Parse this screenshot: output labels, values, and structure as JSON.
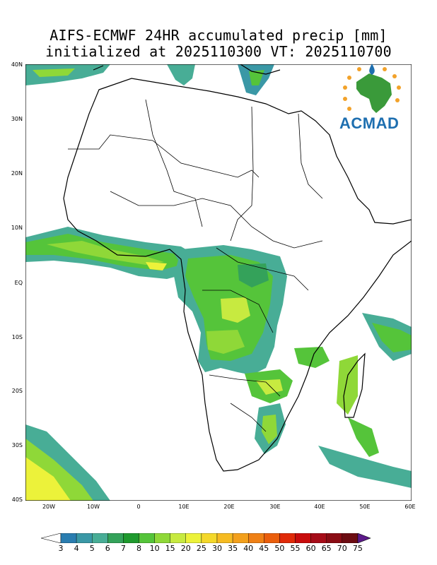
{
  "header": {
    "title_line1": "AIFS-ECMWF 24HR accumulated precip [mm]",
    "title_line2": "initialized at 2025110300 VT: 2025110700"
  },
  "axes": {
    "lat_labels": [
      "40N",
      "30N",
      "20N",
      "10N",
      "EQ",
      "10S",
      "20S",
      "30S",
      "40S"
    ],
    "lon_labels": [
      "20W",
      "10W",
      "0",
      "10E",
      "20E",
      "30E",
      "40E",
      "50E",
      "60E"
    ],
    "lon_range": [
      -25,
      60
    ],
    "lat_range": [
      -40,
      40
    ]
  },
  "logo": {
    "text": "ACMAD"
  },
  "colorbar": {
    "unit": "mm",
    "levels": [
      "3",
      "4",
      "5",
      "6",
      "7",
      "8",
      "10",
      "15",
      "20",
      "25",
      "30",
      "35",
      "40",
      "45",
      "50",
      "55",
      "60",
      "65",
      "70",
      "75"
    ],
    "colors": [
      "#2a7db0",
      "#3a98a6",
      "#48ad96",
      "#34a25a",
      "#1f9a2e",
      "#55c43a",
      "#8fd838",
      "#c7ea40",
      "#ecf23a",
      "#f4d82a",
      "#f6bb22",
      "#f3a01c",
      "#ef8015",
      "#ea5e0c",
      "#e02a08",
      "#c80c0c",
      "#a60c18",
      "#8a0c14",
      "#6c0c12",
      "#4c0c52"
    ],
    "underflow_color": "#ffffff",
    "overflow_color": "#5c1a8a"
  }
}
